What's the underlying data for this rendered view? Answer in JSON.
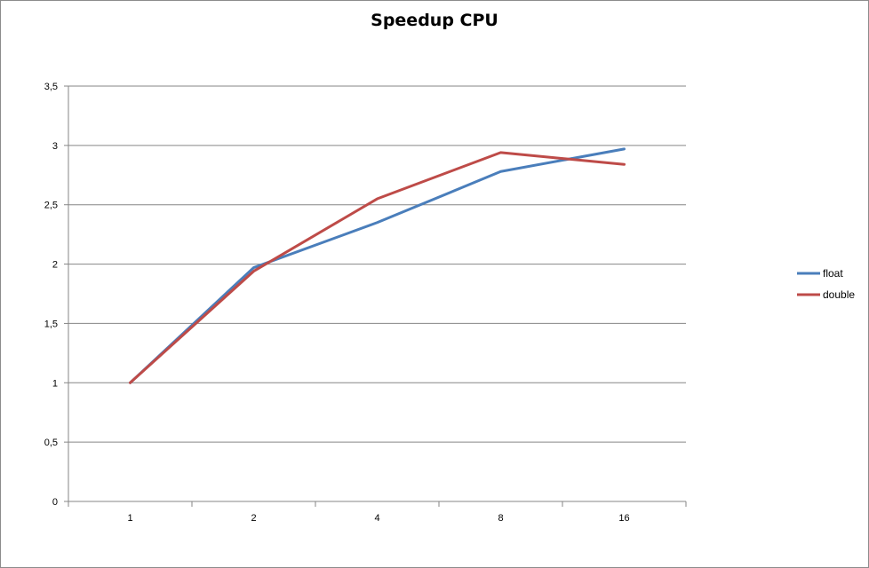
{
  "chart_data": {
    "type": "line",
    "title": "Speedup CPU",
    "xlabel": "",
    "ylabel": "",
    "categories": [
      "1",
      "2",
      "4",
      "8",
      "16"
    ],
    "series": [
      {
        "name": "float",
        "color": "#4a7ebb",
        "values": [
          1.0,
          1.97,
          2.35,
          2.78,
          2.97
        ]
      },
      {
        "name": "double",
        "color": "#be4b48",
        "values": [
          1.0,
          1.94,
          2.55,
          2.94,
          2.84
        ]
      }
    ],
    "ylim": [
      0,
      3.5
    ],
    "yticks": [
      "0",
      "0,5",
      "1",
      "1,5",
      "2",
      "2,5",
      "3",
      "3,5"
    ],
    "grid": true,
    "legend_position": "right"
  }
}
